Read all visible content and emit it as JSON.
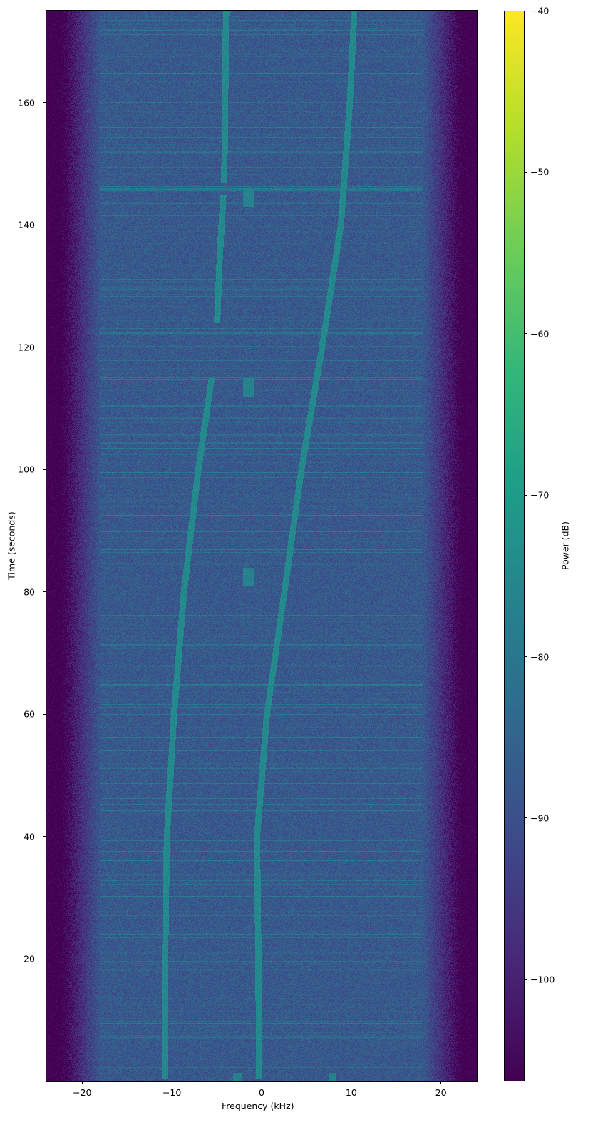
{
  "chart_data": {
    "type": "heatmap",
    "xlabel": "Frequency (kHz)",
    "ylabel": "Time (seconds)",
    "colorbar_label": "Power (dB)",
    "colormap": "viridis",
    "xlim": [
      -24,
      24
    ],
    "ylim": [
      0,
      175
    ],
    "clim": [
      -106.3,
      -40
    ],
    "x_ticks": [
      -20,
      -10,
      0,
      10,
      20
    ],
    "x_tick_labels": [
      "−20",
      "−10",
      "0",
      "10",
      "20"
    ],
    "y_ticks": [
      20,
      40,
      60,
      80,
      100,
      120,
      140,
      160
    ],
    "y_tick_labels": [
      "20",
      "40",
      "60",
      "80",
      "100",
      "120",
      "140",
      "160"
    ],
    "colorbar_ticks": [
      -40,
      -50,
      -60,
      -70,
      -80,
      -90,
      -100
    ],
    "colorbar_tick_labels": [
      "−40",
      "−50",
      "−60",
      "−70",
      "−80",
      "−90",
      "−100"
    ],
    "noise_floor_db": -88,
    "signal_db": -75,
    "traces": [
      {
        "points": [
          [
            0.5,
            -10.8
          ],
          [
            20,
            -10.8
          ],
          [
            40,
            -10.6
          ],
          [
            60,
            -9.8
          ],
          [
            80,
            -8.7
          ],
          [
            100,
            -7.1
          ],
          [
            110,
            -6.1
          ],
          [
            115,
            -5.6
          ]
        ]
      },
      {
        "points": [
          [
            124,
            -5.0
          ],
          [
            135,
            -4.7
          ],
          [
            145,
            -4.3
          ]
        ]
      },
      {
        "points": [
          [
            147,
            -4.2
          ],
          [
            160,
            -4.1
          ],
          [
            175,
            -4.0
          ]
        ]
      },
      {
        "points": [
          [
            0.5,
            -0.3
          ],
          [
            20,
            -0.4
          ],
          [
            40,
            -0.55
          ],
          [
            60,
            0.55
          ],
          [
            80,
            2.5
          ],
          [
            100,
            4.4
          ],
          [
            120,
            6.7
          ],
          [
            140,
            8.8
          ],
          [
            160,
            9.8
          ],
          [
            175,
            10.3
          ]
        ]
      }
    ],
    "bursts": [
      {
        "t": [
          143,
          146
        ],
        "f": [
          -2.1,
          -0.9
        ]
      },
      {
        "t": [
          112,
          115
        ],
        "f": [
          -2.1,
          -0.9
        ]
      },
      {
        "t": [
          81,
          84
        ],
        "f": [
          -2.1,
          -0.9
        ]
      },
      {
        "t": [
          0,
          1.5
        ],
        "f": [
          -3.2,
          -2.3
        ]
      },
      {
        "t": [
          0,
          1.5
        ],
        "f": [
          7.4,
          8.3
        ]
      }
    ]
  }
}
